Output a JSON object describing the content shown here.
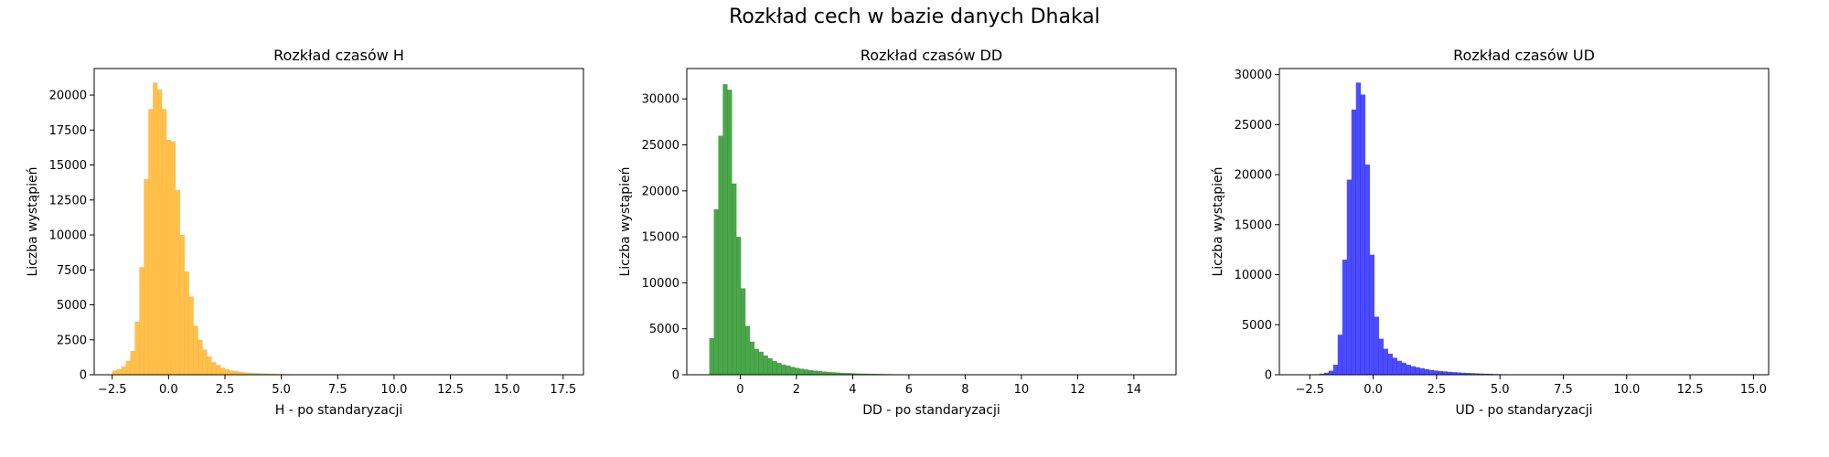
{
  "suptitle": "Rozkład cech w bazie danych Dhakal",
  "chart_data": [
    {
      "type": "bar",
      "title": "Rozkład czasów H",
      "xlabel": "H - po standaryzacji",
      "ylabel": "Liczba wystąpień",
      "color": "#FFA500",
      "opacity": 0.7,
      "xlim": [
        -3.3,
        18.4
      ],
      "ylim": [
        0,
        21900
      ],
      "xticks": [
        -2.5,
        0.0,
        2.5,
        5.0,
        7.5,
        10.0,
        12.5,
        15.0,
        17.5
      ],
      "xtick_labels": [
        "−2.5",
        "0.0",
        "2.5",
        "5.0",
        "7.5",
        "10.0",
        "12.5",
        "15.0",
        "17.5"
      ],
      "yticks": [
        0,
        2500,
        5000,
        7500,
        10000,
        12500,
        15000,
        17500,
        20000
      ],
      "ytick_labels": [
        "0",
        "2500",
        "5000",
        "7500",
        "10000",
        "12500",
        "15000",
        "17500",
        "20000"
      ],
      "bin_start": -2.5,
      "bin_width": 0.2,
      "values": [
        300,
        400,
        600,
        1000,
        1700,
        3800,
        7700,
        14000,
        19000,
        20900,
        20400,
        19000,
        16800,
        16700,
        13200,
        10000,
        7400,
        5600,
        3500,
        2500,
        1800,
        1300,
        900,
        700,
        500,
        400,
        300,
        250,
        200,
        170,
        140,
        120,
        100,
        90,
        80,
        70,
        60,
        50,
        45,
        40,
        35,
        30,
        28,
        25,
        22,
        20,
        18,
        16,
        14,
        12,
        11,
        10,
        9,
        8,
        7,
        6,
        5,
        5,
        4,
        4,
        3,
        3,
        3,
        2,
        2,
        2,
        2,
        1,
        1,
        1,
        1,
        1,
        1,
        1,
        1,
        1,
        1,
        1,
        1,
        1,
        1,
        1,
        1,
        1,
        1,
        1,
        1,
        1,
        1,
        1,
        1,
        1,
        1,
        1,
        1,
        1,
        1,
        1,
        1,
        1
      ]
    },
    {
      "type": "bar",
      "title": "Rozkład czasów DD",
      "xlabel": "DD - po standaryzacji",
      "ylabel": "Liczba wystąpień",
      "color": "#008000",
      "opacity": 0.7,
      "xlim": [
        -1.9,
        15.5
      ],
      "ylim": [
        0,
        33300
      ],
      "xticks": [
        0,
        2,
        4,
        6,
        8,
        10,
        12,
        14
      ],
      "xtick_labels": [
        "0",
        "2",
        "4",
        "6",
        "8",
        "10",
        "12",
        "14"
      ],
      "yticks": [
        0,
        5000,
        10000,
        15000,
        20000,
        25000,
        30000
      ],
      "ytick_labels": [
        "0",
        "5000",
        "10000",
        "15000",
        "20000",
        "25000",
        "30000"
      ],
      "bin_start": -1.1,
      "bin_width": 0.16,
      "values": [
        4000,
        18000,
        26000,
        31600,
        31000,
        20800,
        15000,
        9400,
        5300,
        3600,
        2800,
        2500,
        2100,
        1800,
        1500,
        1300,
        1100,
        1000,
        850,
        750,
        650,
        580,
        500,
        450,
        400,
        350,
        300,
        270,
        240,
        210,
        190,
        170,
        150,
        130,
        120,
        110,
        100,
        90,
        80,
        70,
        60,
        55,
        50,
        45,
        40,
        35,
        30,
        28,
        25,
        22,
        20,
        18,
        16,
        14,
        12,
        10,
        9,
        8,
        7,
        6,
        5,
        5,
        4,
        4,
        3,
        3,
        3,
        2,
        2,
        2,
        2,
        2,
        1,
        1,
        1,
        1,
        1,
        1,
        1,
        1,
        1,
        1,
        1,
        1,
        1,
        1,
        1,
        1,
        1,
        1,
        1,
        1,
        1,
        1,
        1,
        1,
        1,
        1,
        1,
        1
      ]
    },
    {
      "type": "bar",
      "title": "Rozkład czasów UD",
      "xlabel": "UD - po standaryzacji",
      "ylabel": "Liczba wystąpień",
      "color": "#0000FF",
      "opacity": 0.7,
      "xlim": [
        -3.7,
        15.6
      ],
      "ylim": [
        0,
        30600
      ],
      "xticks": [
        -2.5,
        0.0,
        2.5,
        5.0,
        7.5,
        10.0,
        12.5,
        15.0
      ],
      "xtick_labels": [
        "−2.5",
        "0.0",
        "2.5",
        "5.0",
        "7.5",
        "10.0",
        "12.5",
        "15.0"
      ],
      "yticks": [
        0,
        5000,
        10000,
        15000,
        20000,
        25000,
        30000
      ],
      "ytick_labels": [
        "0",
        "5000",
        "10000",
        "15000",
        "20000",
        "25000",
        "30000"
      ],
      "bin_start": -2.3,
      "bin_width": 0.18,
      "values": [
        50,
        100,
        200,
        400,
        1000,
        4000,
        11500,
        19500,
        26500,
        29200,
        28000,
        21000,
        12000,
        5800,
        3600,
        2600,
        2100,
        1700,
        1400,
        1200,
        1000,
        850,
        750,
        650,
        560,
        480,
        420,
        370,
        330,
        290,
        260,
        230,
        200,
        180,
        160,
        140,
        120,
        100,
        85,
        70,
        60,
        50,
        40,
        35,
        30,
        25,
        20,
        18,
        15,
        12,
        10,
        9,
        8,
        7,
        6,
        5,
        5,
        4,
        4,
        3,
        3,
        2,
        2,
        2,
        2,
        1,
        1,
        1,
        1,
        1,
        1,
        1,
        1,
        1,
        1,
        1,
        1,
        1,
        1,
        1,
        1,
        1,
        1,
        1,
        1,
        1,
        1,
        1,
        1,
        1,
        1,
        1,
        1,
        1,
        1,
        1,
        1,
        1,
        1,
        1
      ]
    }
  ]
}
